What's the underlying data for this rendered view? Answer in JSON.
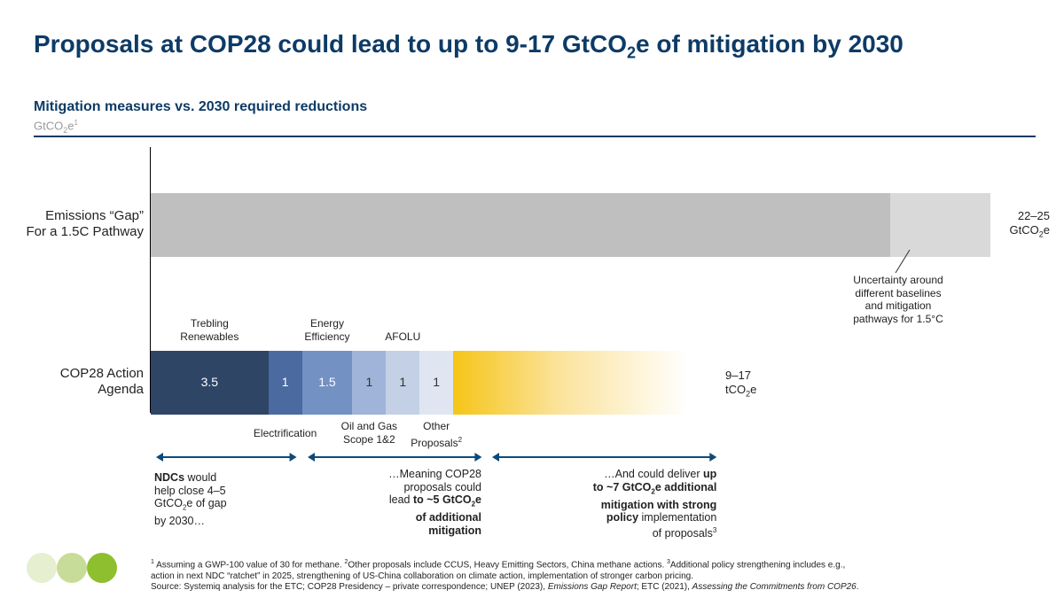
{
  "title": {
    "main": "Proposals at COP28 could lead to up to 9-17 GtCO",
    "sub": "2",
    "suffix": "e of mitigation by 2030"
  },
  "subtitle": "Mitigation measures vs. 2030 required reductions",
  "unit": {
    "main": "GtCO",
    "sub": "2",
    "suffix": "e",
    "sup": "1"
  },
  "chart_data": {
    "type": "bar",
    "orientation": "horizontal-stacked",
    "rows": [
      {
        "label_line1": "Emissions “Gap”",
        "label_line2": "For a 1.5C Pathway",
        "segments": [
          {
            "value": 22,
            "color": "#bfbfbf"
          },
          {
            "value": 3,
            "color": "#d9d9d9"
          }
        ],
        "total_label": {
          "line1": "22–25",
          "line2_main": "GtCO",
          "line2_sub": "2",
          "line2_suffix": "e"
        },
        "annotation": [
          "Uncertainty around",
          "different baselines",
          "and mitigation",
          "pathways for 1.5°C"
        ]
      },
      {
        "label_line1": "COP28 Action",
        "label_line2": "Agenda",
        "segments": [
          {
            "name": "Trebling Renewables",
            "value": 3.5,
            "display": "3.5",
            "color": "#2e4566",
            "label_position": "above",
            "label_lines": [
              "Trebling",
              "Renewables"
            ]
          },
          {
            "name": "Electrification",
            "value": 1,
            "display": "1",
            "color": "#4a6aa0",
            "label_position": "below",
            "label_lines": [
              "Electrification"
            ]
          },
          {
            "name": "Energy Efficiency",
            "value": 1.5,
            "display": "1.5",
            "color": "#7391c2",
            "label_position": "above",
            "label_lines": [
              "Energy",
              "Efficiency"
            ]
          },
          {
            "name": "Oil and Gas Scope 1&2",
            "value": 1,
            "display": "1",
            "color": "#9fb4d8",
            "label_position": "below",
            "label_lines": [
              "Oil and Gas",
              "Scope 1&2"
            ]
          },
          {
            "name": "AFOLU",
            "value": 1,
            "display": "1",
            "color": "#c3d0e6",
            "label_position": "above",
            "label_lines": [
              "AFOLU"
            ]
          },
          {
            "name": "Other Proposals",
            "value": 1,
            "display": "1",
            "color": "#dfe6f1",
            "label_position": "below",
            "label_lines": [
              "Other",
              "Proposals"
            ],
            "label_sup": "2"
          },
          {
            "name": "Additional policy",
            "value": 7,
            "display": "",
            "color": "#f5c518",
            "gradient": true
          }
        ],
        "total_label": {
          "line1": "9–17",
          "line2_main": "tCO",
          "line2_sub": "2",
          "line2_suffix": "e"
        }
      }
    ],
    "x_axis": {
      "min": 0,
      "max": 25,
      "ticks": false
    },
    "grid": false,
    "legend": "none"
  },
  "ranges": [
    {
      "from": 0,
      "to": 4.5,
      "lines": [
        [
          {
            "t": "NDCs",
            "b": true
          },
          {
            "t": " would"
          }
        ],
        [
          {
            "t": "help close 4–5"
          }
        ],
        [
          {
            "t": "GtCO"
          },
          {
            "t": "2",
            "sub": true
          },
          {
            "t": "e of gap"
          }
        ],
        [
          {
            "t": "by 2030…"
          }
        ]
      ],
      "align": "left"
    },
    {
      "from": 4.5,
      "to": 10,
      "lines": [
        [
          {
            "t": "…Meaning COP28"
          }
        ],
        [
          {
            "t": "proposals could"
          }
        ],
        [
          {
            "t": "lead "
          },
          {
            "t": "to ~5 GtCO",
            "b": true
          },
          {
            "t": "2",
            "sub": true,
            "b": true
          },
          {
            "t": "e",
            "b": true
          }
        ],
        [
          {
            "t": "of additional",
            "b": true
          }
        ],
        [
          {
            "t": "mitigation",
            "b": true
          }
        ]
      ],
      "align": "right"
    },
    {
      "from": 10,
      "to": 17,
      "lines": [
        [
          {
            "t": "…And could deliver "
          },
          {
            "t": "up",
            "b": true
          }
        ],
        [
          {
            "t": "to ~7 GtCO",
            "b": true
          },
          {
            "t": "2",
            "sub": true,
            "b": true
          },
          {
            "t": "e additional",
            "b": true
          }
        ],
        [
          {
            "t": "mitigation with strong",
            "b": true
          }
        ],
        [
          {
            "t": "policy",
            "b": true
          },
          {
            "t": " implementation"
          }
        ],
        [
          {
            "t": "of proposals"
          },
          {
            "t": "3",
            "sup": true
          }
        ]
      ],
      "align": "right"
    }
  ],
  "footnotes": {
    "line1": "Assuming a GWP-100 value of 30 for methane. ",
    "line1_sup1": "1",
    "line1_sup2": "2",
    "line1_b": "Other proposals include CCUS, Heavy Emitting Sectors, China methane actions. ",
    "line1_sup3": "3",
    "line1_c": "Additional policy strengthening includes e.g.,",
    "line2": "action in next NDC “ratchet” in 2025, strengthening of US-China collaboration on climate action, implementation of stronger carbon pricing.",
    "line3_a": "Source: Systemiq analysis for the ETC;  COP28 Presidency – private correspondence; UNEP (2023), ",
    "line3_i1": "Emissions Gap Report",
    "line3_b": "; ETC (2021), ",
    "line3_i2": "Assessing the Commitments from COP26",
    "line3_c": "."
  },
  "colors": {
    "brand": "#0d3b66",
    "arrow": "#0d4a7a",
    "dots": [
      "#e6efd0",
      "#c8dc9a",
      "#8dbf2f"
    ]
  }
}
